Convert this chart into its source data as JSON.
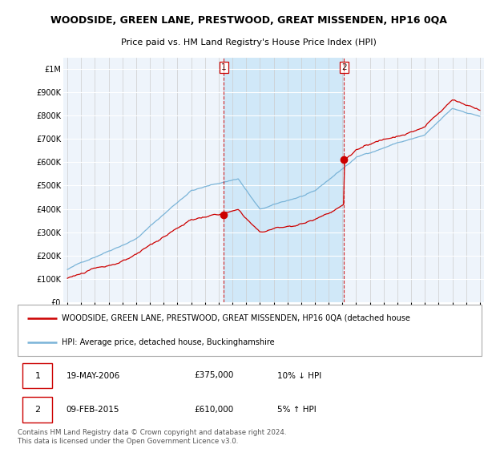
{
  "title": "WOODSIDE, GREEN LANE, PRESTWOOD, GREAT MISSENDEN, HP16 0QA",
  "subtitle": "Price paid vs. HM Land Registry's House Price Index (HPI)",
  "red_label": "WOODSIDE, GREEN LANE, PRESTWOOD, GREAT MISSENDEN, HP16 0QA (detached house",
  "blue_label": "HPI: Average price, detached house, Buckinghamshire",
  "transaction1": {
    "label": "1",
    "date": "19-MAY-2006",
    "price": "£375,000",
    "hpi": "10% ↓ HPI",
    "year": 2006.38
  },
  "transaction2": {
    "label": "2",
    "date": "09-FEB-2015",
    "price": "£610,000",
    "hpi": "5% ↑ HPI",
    "year": 2015.12
  },
  "footer": "Contains HM Land Registry data © Crown copyright and database right 2024.\nThis data is licensed under the Open Government Licence v3.0.",
  "ylim": [
    0,
    1050000
  ],
  "yticks": [
    0,
    100000,
    200000,
    300000,
    400000,
    500000,
    600000,
    700000,
    800000,
    900000,
    1000000
  ],
  "ytick_labels": [
    "£0",
    "£100K",
    "£200K",
    "£300K",
    "£400K",
    "£500K",
    "£600K",
    "£700K",
    "£800K",
    "£900K",
    "£1M"
  ],
  "xlim_start": 1994.7,
  "xlim_end": 2025.3,
  "xtick_years": [
    1995,
    1996,
    1997,
    1998,
    1999,
    2000,
    2001,
    2002,
    2003,
    2004,
    2005,
    2006,
    2007,
    2008,
    2009,
    2010,
    2011,
    2012,
    2013,
    2014,
    2015,
    2016,
    2017,
    2018,
    2019,
    2020,
    2021,
    2022,
    2023,
    2024,
    2025
  ],
  "sale1_x": 2006.38,
  "sale1_y": 375000,
  "sale2_x": 2015.12,
  "sale2_y": 610000,
  "plot_bg": "#eef4fb",
  "shade_color": "#d0e8f8",
  "red_color": "#cc0000",
  "blue_color": "#7ab4d8",
  "vline_color": "#cc0000",
  "grid_color": "#cccccc",
  "outer_bg": "#ffffff"
}
